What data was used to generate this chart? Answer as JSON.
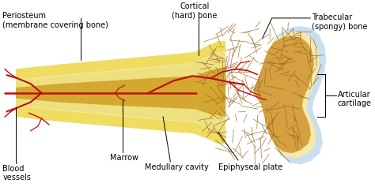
{
  "bg_color": "#ffffff",
  "labels": {
    "periosteum": "Periosteum\n(membrane covering bone)",
    "blood_vessels": "Blood\nvessels",
    "marrow": "Marrow",
    "medullary_cavity": "Medullary cavity",
    "cortical_bone": "Cortical\n(hard) bone",
    "epiphyseal_plate": "Epiphyseal plate",
    "trabecular_bone": "Trabecular\n(spongy) bone",
    "articular_cartilage": "Articular\ncartilage"
  },
  "colors": {
    "bone_outer": "#f5e9a8",
    "cortical_layer": "#f0e070",
    "medullary": "#e8d060",
    "marrow_inner": "#d4a830",
    "trabecular_base": "#d4a040",
    "trabecular_dark": "#b07828",
    "cartilage": "#c8dff0",
    "blood_vessel": "#bb1111",
    "label_line": "#000000",
    "label_text": "#000000"
  },
  "figsize": [
    4.74,
    2.37
  ],
  "dpi": 100
}
